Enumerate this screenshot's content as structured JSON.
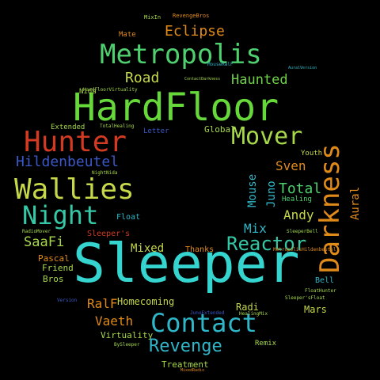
{
  "word_cloud": {
    "words": [
      {
        "text": "Sleeper",
        "color": "#35d4cf",
        "size": "xxl"
      },
      {
        "text": "HardFloor",
        "color": "#66d83a",
        "size": "xxl"
      },
      {
        "text": "Metropolis",
        "color": "#4fd06e",
        "size": "xl"
      },
      {
        "text": "Darkness",
        "color": "#e08a1a",
        "size": "xl",
        "rotated": true
      },
      {
        "text": "Contact",
        "color": "#2fb7c9",
        "size": "xl"
      },
      {
        "text": "Wallies",
        "color": "#c6d84a",
        "size": "xl"
      },
      {
        "text": "Hunter",
        "color": "#d23a22",
        "size": "xl"
      },
      {
        "text": "Night",
        "color": "#35c8a6",
        "size": "xl"
      },
      {
        "text": "Mover",
        "color": "#a6d84a",
        "size": "l"
      },
      {
        "text": "Reactor",
        "color": "#35c8a6",
        "size": "l"
      },
      {
        "text": "Revenge",
        "color": "#2fb7c9",
        "size": "l"
      },
      {
        "text": "Hildenbeutel",
        "color": "#3a58c8",
        "size": "l"
      },
      {
        "text": "Eclipse",
        "color": "#e08a1a",
        "size": "m"
      },
      {
        "text": "Haunted",
        "color": "#6fd04a",
        "size": "m"
      },
      {
        "text": "Road",
        "color": "#c6d84a",
        "size": "m"
      },
      {
        "text": "Vaeth",
        "color": "#e08a1a",
        "size": "m"
      },
      {
        "text": "SaaFi",
        "color": "#a6d84a",
        "size": "m"
      },
      {
        "text": "Total",
        "color": "#4fd06e",
        "size": "m"
      },
      {
        "text": "Sven",
        "color": "#e08a1a",
        "size": "m"
      },
      {
        "text": "Andy",
        "color": "#c6d84a",
        "size": "m"
      },
      {
        "text": "Mix",
        "color": "#2fb7c9",
        "size": "m"
      },
      {
        "text": "Mixed",
        "color": "#c6d84a",
        "size": "m"
      },
      {
        "text": "RalF",
        "color": "#e08a1a",
        "size": "m"
      },
      {
        "text": "Mouse",
        "color": "#2fb7c9",
        "size": "m",
        "rotated": true
      },
      {
        "text": "Juno",
        "color": "#2fb7c9",
        "size": "m",
        "rotated": true
      },
      {
        "text": "Aural",
        "color": "#e08a1a",
        "size": "m",
        "rotated": true
      },
      {
        "text": "Homecoming",
        "color": "#c6d84a",
        "size": "s"
      },
      {
        "text": "Thanks",
        "color": "#e08a1a",
        "size": "s"
      },
      {
        "text": "Virtuality",
        "color": "#a6d84a",
        "size": "s"
      },
      {
        "text": "Treatment",
        "color": "#a6d84a",
        "size": "s"
      },
      {
        "text": "Pascal",
        "color": "#e08a1a",
        "size": "s"
      },
      {
        "text": "Friend",
        "color": "#a6d84a",
        "size": "s"
      },
      {
        "text": "Bros",
        "color": "#a6d84a",
        "size": "s"
      },
      {
        "text": "Radi",
        "color": "#c6d84a",
        "size": "s"
      },
      {
        "text": "Mars",
        "color": "#c6d84a",
        "size": "s"
      },
      {
        "text": "Remix",
        "color": "#a6d84a",
        "size": "xs"
      },
      {
        "text": "Global",
        "color": "#a6d84a",
        "size": "s"
      },
      {
        "text": "Healing",
        "color": "#4fd06e",
        "size": "xs"
      },
      {
        "text": "Youth",
        "color": "#c6d84a",
        "size": "xs"
      },
      {
        "text": "Float",
        "color": "#2fb7c9",
        "size": "xs"
      },
      {
        "text": "Sleeper's",
        "color": "#d23a22",
        "size": "xs"
      },
      {
        "text": "Bell",
        "color": "#2fb7c9",
        "size": "xs"
      },
      {
        "text": "Nida",
        "color": "#a6d84a",
        "size": "xs"
      },
      {
        "text": "Mate",
        "color": "#e08a1a",
        "size": "xs"
      },
      {
        "text": "Letter",
        "color": "#3a58c8",
        "size": "xs"
      },
      {
        "text": "Extended",
        "color": "#a6d84a",
        "size": "xs"
      },
      {
        "text": "TotalHealing",
        "color": "#a6d84a",
        "size": "xxs"
      },
      {
        "text": "NightNida",
        "color": "#a6d84a",
        "size": "xxs"
      },
      {
        "text": "RadioMover",
        "color": "#a6d84a",
        "size": "xxs"
      },
      {
        "text": "SleeperBell",
        "color": "#a6d84a",
        "size": "xxs"
      },
      {
        "text": "FloatHunter",
        "color": "#a6d84a",
        "size": "xxs"
      },
      {
        "text": "Sleeper'sFloat",
        "color": "#a6d84a",
        "size": "xxs"
      },
      {
        "text": "HealingMix",
        "color": "#a6d84a",
        "size": "xxs"
      },
      {
        "text": "BySleeper",
        "color": "#a6d84a",
        "size": "xxs"
      },
      {
        "text": "MixedRadio",
        "color": "#e08a1a",
        "size": "xxs"
      },
      {
        "text": "RevengeBros",
        "color": "#e08a1a",
        "size": "xxs"
      },
      {
        "text": "MixIn",
        "color": "#a6d84a",
        "size": "xxs"
      },
      {
        "text": "MouseRalF",
        "color": "#2fb7c9",
        "size": "xxs"
      },
      {
        "text": "AuralVersion",
        "color": "#2fb7c9",
        "size": "xxs"
      },
      {
        "text": "Version",
        "color": "#3a58c8",
        "size": "xxs"
      },
      {
        "text": "JunoExtended",
        "color": "#3a58c8",
        "size": "xxs"
      },
      {
        "text": "MetropolisHildenbeutel",
        "color": "#e08a1a",
        "size": "xxs"
      },
      {
        "text": "ContactDarkness",
        "color": "#a6d84a",
        "size": "xxs"
      },
      {
        "text": "HardFloorVirtuality",
        "color": "#a6d84a",
        "size": "xxs"
      }
    ]
  }
}
